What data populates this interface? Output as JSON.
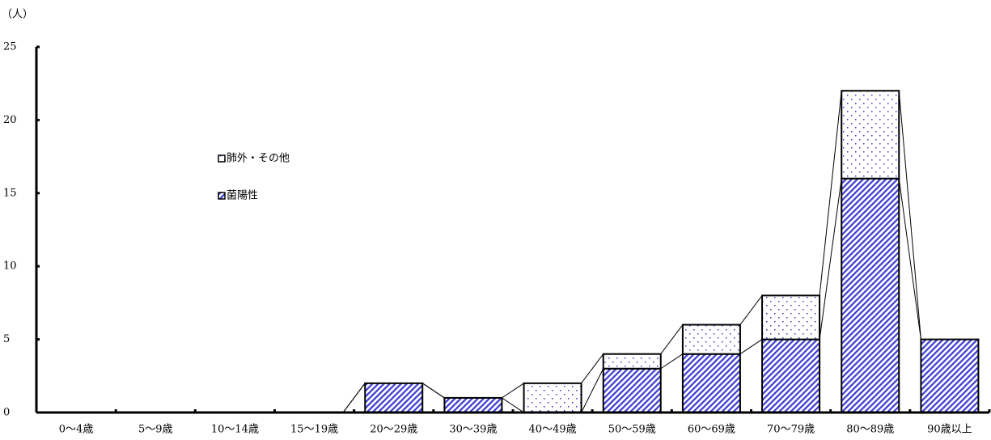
{
  "chart_data": {
    "type": "bar",
    "stacked": true,
    "y_label": "（人）",
    "categories": [
      "0〜4歳",
      "5〜9歳",
      "10〜14歳",
      "15〜19歳",
      "20〜29歳",
      "30〜39歳",
      "40〜49歳",
      "50〜59歳",
      "60〜69歳",
      "70〜79歳",
      "80〜89歳",
      "90歳以上"
    ],
    "series": [
      {
        "name": "菌陽性",
        "color": "#3a3ad0",
        "values": [
          0,
          0,
          0,
          0,
          2,
          1,
          0,
          3,
          4,
          5,
          16,
          5
        ]
      },
      {
        "name": "肺外・その他",
        "color": "#3a3ad0",
        "values": [
          0,
          0,
          0,
          0,
          0,
          0,
          2,
          1,
          2,
          3,
          6,
          0
        ]
      }
    ],
    "ylim": [
      0,
      25
    ],
    "yticks": [
      0,
      5,
      10,
      15,
      20,
      25
    ]
  }
}
